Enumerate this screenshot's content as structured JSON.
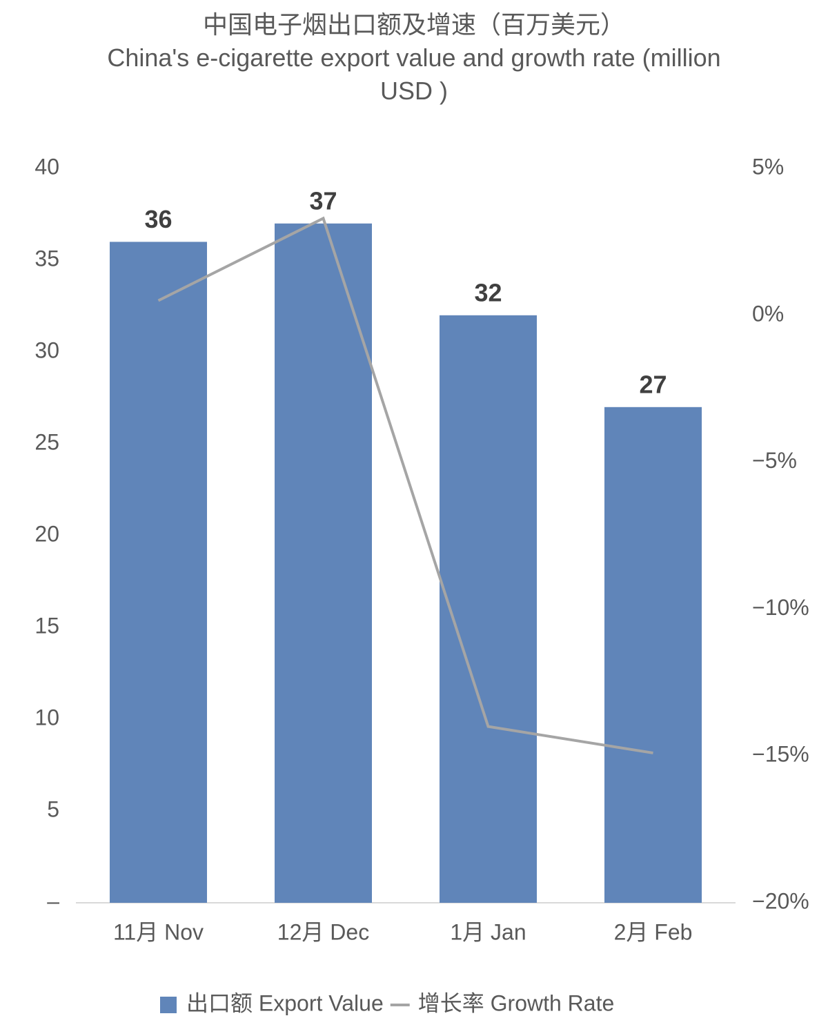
{
  "chart_data": {
    "type": "bar",
    "title": "中国电子烟出口额及增速（百万美元）",
    "subtitle": "China's e-cigarette export value and growth rate (million USD )",
    "categories": [
      "11月 Nov",
      "12月 Dec",
      "1月 Jan",
      "2月 Feb"
    ],
    "series": [
      {
        "name": "出口额 Export Value",
        "type": "bar",
        "color": "#6085b9",
        "values": [
          36,
          37,
          32,
          27
        ]
      },
      {
        "name": "增长率 Growth Rate",
        "type": "line",
        "color": "#a5a5a5",
        "axis": "y2",
        "values": [
          0.5,
          3.3,
          -14.0,
          -14.9
        ]
      }
    ],
    "ylim": [
      0,
      40
    ],
    "yticks": [
      {
        "value": 0,
        "label": "–"
      },
      5,
      10,
      15,
      20,
      25,
      30,
      35,
      40
    ],
    "y2lim": [
      -20,
      5
    ],
    "y2ticks": [
      {
        "value": -20,
        "label": "−20%"
      },
      {
        "value": -15,
        "label": "−15%"
      },
      {
        "value": -10,
        "label": "−10%"
      },
      {
        "value": -5,
        "label": "−5%"
      },
      {
        "value": 0,
        "label": "0%"
      },
      {
        "value": 5,
        "label": "5%"
      }
    ],
    "legend": "bottom"
  }
}
